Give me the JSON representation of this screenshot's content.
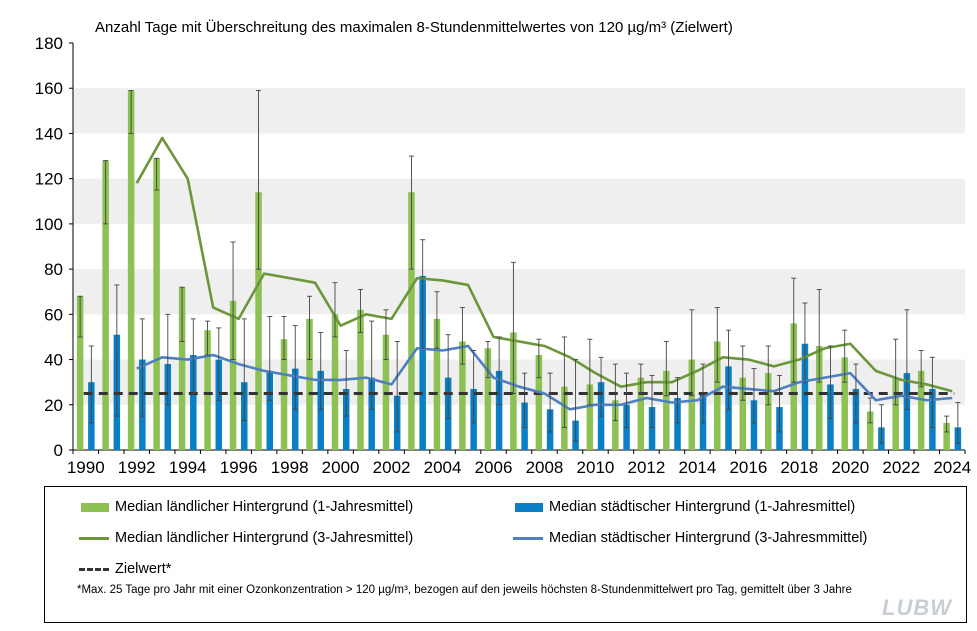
{
  "chart_data": {
    "type": "bar",
    "title": "Anzahl Tage mit Überschreitung des maximalen 8-Stundenmittelwertes von 120 µg/m³ (Zielwert)",
    "ylim": [
      0,
      180
    ],
    "yticks": [
      0,
      20,
      40,
      60,
      80,
      100,
      120,
      140,
      160,
      180
    ],
    "x": [
      1990,
      1991,
      1992,
      1993,
      1994,
      1995,
      1996,
      1997,
      1998,
      1999,
      2000,
      2001,
      2002,
      2003,
      2004,
      2005,
      2006,
      2007,
      2008,
      2009,
      2010,
      2011,
      2012,
      2013,
      2014,
      2015,
      2016,
      2017,
      2018,
      2019,
      2020,
      2021,
      2022,
      2023,
      2024
    ],
    "xtick_labels": [
      1990,
      1992,
      1994,
      1996,
      1998,
      2000,
      2002,
      2004,
      2006,
      2008,
      2010,
      2012,
      2014,
      2016,
      2018,
      2020,
      2022,
      2024
    ],
    "series": [
      {
        "name": "Median ländlicher Hintergrund (1-Jahresmittel)",
        "type": "bar",
        "color": "#8dc153",
        "values": [
          68,
          128,
          159,
          129,
          72,
          53,
          66,
          114,
          49,
          58,
          60,
          62,
          51,
          114,
          58,
          48,
          45,
          52,
          42,
          28,
          29,
          22,
          32,
          35,
          40,
          48,
          32,
          34,
          56,
          46,
          41,
          17,
          32,
          35,
          12
        ],
        "err_low": [
          50,
          100,
          140,
          115,
          48,
          42,
          40,
          80,
          40,
          40,
          50,
          52,
          40,
          80,
          45,
          38,
          32,
          25,
          32,
          10,
          20,
          13,
          25,
          24,
          24,
          30,
          22,
          20,
          30,
          30,
          30,
          12,
          20,
          28,
          8
        ],
        "err_high": [
          68,
          128,
          159,
          129,
          72,
          57,
          92,
          159,
          59,
          68,
          74,
          71,
          62,
          130,
          70,
          63,
          48,
          83,
          49,
          50,
          49,
          38,
          38,
          48,
          62,
          63,
          46,
          46,
          76,
          71,
          53,
          23,
          49,
          44,
          15
        ]
      },
      {
        "name": "Median städtischer Hintergrund (1-Jahresmittel)",
        "type": "bar",
        "color": "#0a7fc6",
        "values": [
          30,
          51,
          40,
          38,
          42,
          40,
          30,
          35,
          36,
          35,
          27,
          32,
          24,
          77,
          32,
          27,
          35,
          21,
          18,
          13,
          30,
          20,
          19,
          23,
          25,
          37,
          22,
          19,
          47,
          29,
          27,
          10,
          34,
          27,
          10
        ],
        "err_low": [
          12,
          15,
          15,
          20,
          25,
          22,
          13,
          22,
          18,
          18,
          15,
          18,
          8,
          45,
          14,
          12,
          20,
          10,
          8,
          4,
          15,
          10,
          10,
          12,
          12,
          18,
          12,
          8,
          30,
          14,
          12,
          3,
          18,
          10,
          3
        ],
        "err_high": [
          46,
          73,
          58,
          60,
          58,
          54,
          58,
          59,
          55,
          52,
          44,
          57,
          48,
          93,
          51,
          44,
          50,
          34,
          34,
          40,
          41,
          34,
          33,
          32,
          38,
          53,
          36,
          33,
          65,
          46,
          38,
          20,
          62,
          41,
          21
        ]
      },
      {
        "name": "Median ländlicher Hintergrund (3-Jahresmittel)",
        "type": "line",
        "color": "#6c963a",
        "values": [
          null,
          null,
          118,
          138,
          120,
          63,
          58,
          78,
          76,
          74,
          55,
          60,
          58,
          76,
          75,
          73,
          50,
          48,
          46,
          41,
          34,
          28,
          30,
          30,
          35,
          41,
          40,
          37,
          40,
          45,
          47,
          35,
          31,
          29,
          26
        ]
      },
      {
        "name": "Median städtischer Hintergrund (3-Jahresmmittel)",
        "type": "line",
        "color": "#4f7fc0",
        "values": [
          null,
          null,
          36,
          41,
          40,
          42,
          38,
          35,
          33,
          31,
          31,
          32,
          29,
          45,
          44,
          46,
          32,
          28,
          25,
          18,
          20,
          20,
          23,
          21,
          22,
          28,
          27,
          26,
          30,
          32,
          34,
          22,
          24,
          22,
          23
        ]
      },
      {
        "name": "Zielwert*",
        "type": "reference",
        "color": "#333333",
        "value": 25
      }
    ],
    "legend_labels": {
      "rural_1y": "Median ländlicher Hintergrund (1-Jahresmittel)",
      "urban_1y": "Median städtischer Hintergrund (1-Jahresmittel)",
      "rural_3y": "Median ländlicher Hintergrund (3-Jahresmittel)",
      "urban_3y": "Median städtischer Hintergrund (3-Jahresmmittel)",
      "target": "Zielwert*"
    },
    "footnote": "*Max. 25 Tage pro Jahr mit einer Ozonkonzentration > 120 µg/m³, bezogen auf den jeweils höchsten 8-Stundenmittelwert pro Tag, gemittelt über 3 Jahre",
    "logo": "LUBW"
  }
}
